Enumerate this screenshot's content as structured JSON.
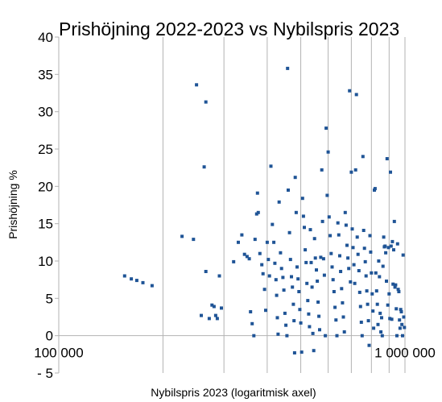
{
  "chart_data": {
    "type": "scatter",
    "title": "Prishöjning 2022-2023 vs Nybilspris 2023",
    "xlabel": "Nybilspris 2023 (logaritmisk axel)",
    "ylabel": "Prishöjning %",
    "x_scale": "log",
    "xlim": [
      100000,
      1000000
    ],
    "ylim": [
      -5,
      40
    ],
    "x_ticks": [
      {
        "value": 100000,
        "label": "100 000"
      },
      {
        "value": 1000000,
        "label": "1 000 000"
      }
    ],
    "y_ticks": [
      {
        "value": 40,
        "label": "40"
      },
      {
        "value": 35,
        "label": "35"
      },
      {
        "value": 30,
        "label": "30"
      },
      {
        "value": 25,
        "label": "25"
      },
      {
        "value": 20,
        "label": "20"
      },
      {
        "value": 15,
        "label": "15"
      },
      {
        "value": 10,
        "label": "10"
      },
      {
        "value": 5,
        "label": "5"
      },
      {
        "value": 0,
        "label": "0"
      },
      {
        "value": -5,
        "label": "- 5"
      }
    ],
    "grid": {
      "vertical": true,
      "horizontal": false
    },
    "marker_color": "#1f5496",
    "series": [
      {
        "points": [
          [
            155000,
            8.0
          ],
          [
            162000,
            7.6
          ],
          [
            168000,
            7.4
          ],
          [
            175000,
            7.1
          ],
          [
            186000,
            6.7
          ],
          [
            227000,
            13.3
          ],
          [
            245000,
            12.9
          ],
          [
            250000,
            33.6
          ],
          [
            258000,
            2.7
          ],
          [
            263000,
            22.6
          ],
          [
            266000,
            31.3
          ],
          [
            266000,
            8.6
          ],
          [
            272000,
            2.3
          ],
          [
            277000,
            4.1
          ],
          [
            281000,
            3.9
          ],
          [
            284000,
            2.7
          ],
          [
            287000,
            2.3
          ],
          [
            291000,
            8.0
          ],
          [
            295000,
            3.7
          ],
          [
            320000,
            9.9
          ],
          [
            330000,
            12.5
          ],
          [
            338000,
            13.5
          ],
          [
            344000,
            10.9
          ],
          [
            350000,
            10.6
          ],
          [
            355000,
            10.3
          ],
          [
            358000,
            3.2
          ],
          [
            362000,
            1.6
          ],
          [
            366000,
            0.0
          ],
          [
            369000,
            12.9
          ],
          [
            373000,
            16.3
          ],
          [
            375000,
            19.1
          ],
          [
            377000,
            16.5
          ],
          [
            381000,
            11.0
          ],
          [
            386000,
            9.5
          ],
          [
            389000,
            8.3
          ],
          [
            393000,
            6.2
          ],
          [
            396000,
            3.4
          ],
          [
            400000,
            12.5
          ],
          [
            403000,
            10.2
          ],
          [
            406000,
            8.0
          ],
          [
            410000,
            22.7
          ],
          [
            414000,
            14.9
          ],
          [
            418000,
            12.5
          ],
          [
            421000,
            9.7
          ],
          [
            424000,
            7.5
          ],
          [
            426000,
            5.4
          ],
          [
            428000,
            2.4
          ],
          [
            430000,
            0.2
          ],
          [
            433000,
            17.9
          ],
          [
            437000,
            11.1
          ],
          [
            440000,
            9.0
          ],
          [
            444000,
            7.8
          ],
          [
            447000,
            6.1
          ],
          [
            450000,
            3.0
          ],
          [
            453000,
            1.4
          ],
          [
            456000,
            0.0
          ],
          [
            458000,
            35.8
          ],
          [
            460000,
            19.5
          ],
          [
            464000,
            13.8
          ],
          [
            467000,
            10.2
          ],
          [
            470000,
            7.9
          ],
          [
            473000,
            6.5
          ],
          [
            476000,
            4.2
          ],
          [
            478000,
            2.0
          ],
          [
            480000,
            -2.3
          ],
          [
            482000,
            21.2
          ],
          [
            485000,
            16.5
          ],
          [
            488000,
            9.2
          ],
          [
            491000,
            7.6
          ],
          [
            494000,
            5.9
          ],
          [
            497000,
            3.5
          ],
          [
            500000,
            1.7
          ],
          [
            503000,
            -2.2
          ],
          [
            506000,
            18.4
          ],
          [
            509000,
            16.0
          ],
          [
            512000,
            14.5
          ],
          [
            515000,
            11.5
          ],
          [
            518000,
            9.8
          ],
          [
            521000,
            7.0
          ],
          [
            524000,
            4.7
          ],
          [
            527000,
            2.9
          ],
          [
            530000,
            1.2
          ],
          [
            533000,
            14.2
          ],
          [
            536000,
            9.8
          ],
          [
            539000,
            6.5
          ],
          [
            542000,
            0.3
          ],
          [
            545000,
            -2.0
          ],
          [
            548000,
            13.0
          ],
          [
            551000,
            10.4
          ],
          [
            555000,
            8.8
          ],
          [
            558000,
            7.3
          ],
          [
            561000,
            4.5
          ],
          [
            564000,
            2.6
          ],
          [
            567000,
            0.8
          ],
          [
            571000,
            10.5
          ],
          [
            575000,
            22.2
          ],
          [
            578000,
            15.3
          ],
          [
            582000,
            10.3
          ],
          [
            585000,
            8.1
          ],
          [
            589000,
            0.0
          ],
          [
            592000,
            27.8
          ],
          [
            596000,
            18.8
          ],
          [
            600000,
            24.6
          ],
          [
            604000,
            15.9
          ],
          [
            608000,
            13.4
          ],
          [
            612000,
            11.0
          ],
          [
            616000,
            9.2
          ],
          [
            620000,
            7.5
          ],
          [
            624000,
            5.9
          ],
          [
            628000,
            3.8
          ],
          [
            632000,
            2.1
          ],
          [
            636000,
            0.0
          ],
          [
            640000,
            15.1
          ],
          [
            644000,
            13.5
          ],
          [
            648000,
            10.7
          ],
          [
            652000,
            8.6
          ],
          [
            656000,
            6.3
          ],
          [
            660000,
            4.4
          ],
          [
            664000,
            2.5
          ],
          [
            668000,
            0.5
          ],
          [
            672000,
            16.5
          ],
          [
            676000,
            14.8
          ],
          [
            680000,
            12.1
          ],
          [
            684000,
            10.4
          ],
          [
            688000,
            9.0
          ],
          [
            692000,
            32.8
          ],
          [
            696000,
            7.2
          ],
          [
            700000,
            21.9
          ],
          [
            704000,
            14.3
          ],
          [
            708000,
            11.8
          ],
          [
            712000,
            9.5
          ],
          [
            716000,
            7.0
          ],
          [
            720000,
            22.2
          ],
          [
            724000,
            32.3
          ],
          [
            728000,
            13.2
          ],
          [
            732000,
            10.9
          ],
          [
            736000,
            8.7
          ],
          [
            740000,
            5.8
          ],
          [
            744000,
            3.9
          ],
          [
            748000,
            1.8
          ],
          [
            752000,
            0.0
          ],
          [
            756000,
            24.0
          ],
          [
            760000,
            14.1
          ],
          [
            764000,
            11.7
          ],
          [
            768000,
            9.9
          ],
          [
            772000,
            8.0
          ],
          [
            776000,
            6.0
          ],
          [
            780000,
            4.2
          ],
          [
            784000,
            2.0
          ],
          [
            788000,
            -1.3
          ],
          [
            792000,
            13.4
          ],
          [
            796000,
            11.2
          ],
          [
            800000,
            8.4
          ],
          [
            804000,
            5.6
          ],
          [
            808000,
            3.3
          ],
          [
            812000,
            1.0
          ],
          [
            816000,
            19.5
          ],
          [
            820000,
            19.7
          ],
          [
            824000,
            8.4
          ],
          [
            828000,
            6.0
          ],
          [
            832000,
            4.2
          ],
          [
            836000,
            1.5
          ],
          [
            840000,
            10.0
          ],
          [
            844000,
            7.9
          ],
          [
            848000,
            3.0
          ],
          [
            852000,
            0.5
          ],
          [
            856000,
            2.4
          ],
          [
            860000,
            0.0
          ],
          [
            864000,
            9.3
          ],
          [
            868000,
            13.2
          ],
          [
            872000,
            11.9
          ],
          [
            876000,
            12.0
          ],
          [
            880000,
            11.1
          ],
          [
            884000,
            7.3
          ],
          [
            888000,
            23.7
          ],
          [
            892000,
            4.1
          ],
          [
            896000,
            11.8
          ],
          [
            900000,
            5.6
          ],
          [
            904000,
            2.3
          ],
          [
            908000,
            21.9
          ],
          [
            912000,
            12.0
          ],
          [
            916000,
            2.2
          ],
          [
            920000,
            12.6
          ],
          [
            924000,
            6.9
          ],
          [
            928000,
            11.5
          ],
          [
            932000,
            15.3
          ],
          [
            936000,
            6.5
          ],
          [
            940000,
            6.8
          ],
          [
            944000,
            3.6
          ],
          [
            948000,
            0.0
          ],
          [
            952000,
            12.3
          ],
          [
            956000,
            6.2
          ],
          [
            960000,
            5.9
          ],
          [
            964000,
            2.1
          ],
          [
            968000,
            1.0
          ],
          [
            972000,
            3.5
          ],
          [
            976000,
            3.2
          ],
          [
            980000,
            1.5
          ],
          [
            984000,
            0.0
          ],
          [
            988000,
            10.8
          ],
          [
            992000,
            2.5
          ],
          [
            996000,
            1.1
          ]
        ]
      }
    ]
  }
}
